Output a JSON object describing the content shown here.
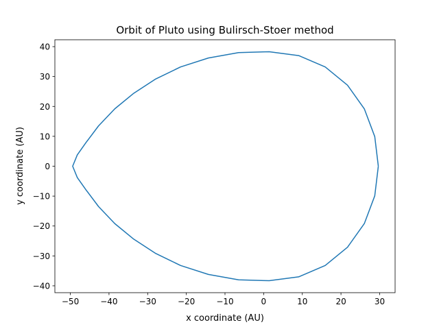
{
  "chart_data": {
    "type": "line",
    "title": "Orbit of Pluto using Bulirsch-Stoer method",
    "xlabel": "x coordinate (AU)",
    "ylabel": "y coordinate (AU)",
    "xlim": [
      -54,
      34
    ],
    "ylim": [
      -42.3,
      42.3
    ],
    "xticks": [
      -50,
      -40,
      -30,
      -20,
      -10,
      0,
      10,
      20,
      30
    ],
    "yticks": [
      -40,
      -30,
      -20,
      -10,
      0,
      10,
      20,
      30,
      40
    ],
    "xtick_labels": [
      "−50",
      "−40",
      "−30",
      "−20",
      "−10",
      "0",
      "10",
      "20",
      "30"
    ],
    "ytick_labels": [
      "−40",
      "−30",
      "−20",
      "−10",
      "0",
      "10",
      "20",
      "30",
      "40"
    ],
    "grid": false,
    "series": [
      {
        "color": "#1f77b4",
        "points": [
          [
            29.66,
            0.0
          ],
          [
            28.74,
            9.9
          ],
          [
            26.04,
            19.2
          ],
          [
            21.69,
            27.1
          ],
          [
            15.93,
            33.2
          ],
          [
            9.06,
            37.0
          ],
          [
            1.45,
            38.3
          ],
          [
            -6.49,
            38.0
          ],
          [
            -14.3,
            36.2
          ],
          [
            -21.5,
            33.2
          ],
          [
            -27.9,
            29.2
          ],
          [
            -33.6,
            24.4
          ],
          [
            -38.5,
            19.2
          ],
          [
            -42.7,
            13.5
          ],
          [
            -45.9,
            8.0
          ],
          [
            -48.2,
            3.8
          ],
          [
            -49.4,
            0.0
          ],
          [
            -48.2,
            -3.8
          ],
          [
            -45.9,
            -8.0
          ],
          [
            -42.7,
            -13.5
          ],
          [
            -38.5,
            -19.2
          ],
          [
            -33.6,
            -24.4
          ],
          [
            -27.9,
            -29.2
          ],
          [
            -21.5,
            -33.2
          ],
          [
            -14.3,
            -36.2
          ],
          [
            -6.49,
            -38.0
          ],
          [
            1.45,
            -38.3
          ],
          [
            9.06,
            -37.0
          ],
          [
            15.93,
            -33.2
          ],
          [
            21.69,
            -27.1
          ],
          [
            26.04,
            -19.2
          ],
          [
            28.74,
            -9.9
          ],
          [
            29.66,
            0.0
          ]
        ]
      }
    ]
  }
}
